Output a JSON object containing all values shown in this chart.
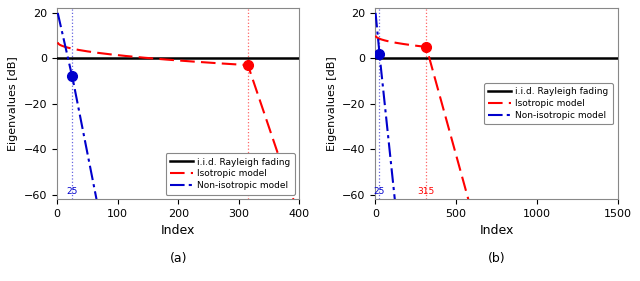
{
  "subplot_a": {
    "title": "(a)",
    "xlabel": "Index",
    "ylabel": "Eigenvalues [dB]",
    "xlim": [
      0,
      400
    ],
    "ylim": [
      -62,
      22
    ],
    "yticks": [
      -60,
      -40,
      -20,
      0,
      20
    ],
    "xticks": [
      0,
      100,
      200,
      300,
      400
    ],
    "iid_level": 0,
    "isotropic_color": "#ff0000",
    "nonisotropic_color": "#0000cc",
    "iid_color": "#000000",
    "rank_iso": 315,
    "rank_noniso": 25,
    "iso_start_val": 7.0,
    "iso_dot_val": -3.0,
    "noniso_start_val": 20.0,
    "noniso_dot_val": -8.0,
    "iso_dot_x": 315,
    "iso_dot_y": -3.0,
    "noniso_dot_x": 25,
    "noniso_dot_y": -8.0,
    "n_total_iso": 390,
    "n_total_noniso": 65
  },
  "subplot_b": {
    "title": "(b)",
    "xlabel": "Index",
    "ylabel": "Eigenvalues [dB]",
    "xlim": [
      0,
      1500
    ],
    "ylim": [
      -62,
      22
    ],
    "yticks": [
      -60,
      -40,
      -20,
      0,
      20
    ],
    "xticks": [
      0,
      500,
      1000,
      1500
    ],
    "iid_level": 0,
    "isotropic_color": "#ff0000",
    "nonisotropic_color": "#0000cc",
    "iid_color": "#000000",
    "rank_iso": 315,
    "rank_noniso": 25,
    "iso_start_val": 10.0,
    "iso_dot_val": 5.0,
    "noniso_start_val": 20.0,
    "noniso_dot_val": 2.0,
    "iso_dot_x": 315,
    "iso_dot_y": 5.0,
    "noniso_dot_x": 25,
    "noniso_dot_y": 2.0,
    "n_total_iso": 575,
    "n_total_noniso": 120
  },
  "legend_labels": [
    "i.i.d. Rayleigh fading",
    "Isotropic model",
    "Non-isotropic model"
  ],
  "bg_color": "#ffffff"
}
